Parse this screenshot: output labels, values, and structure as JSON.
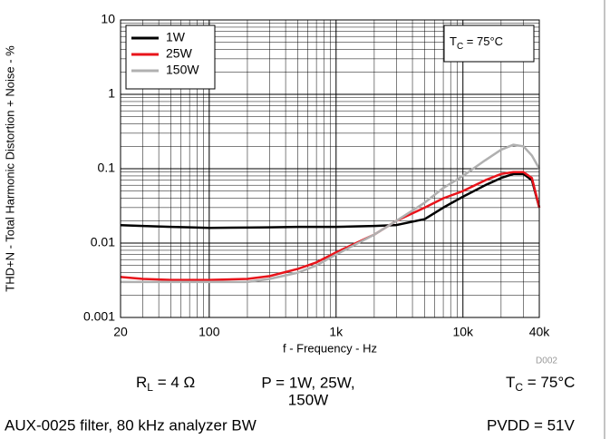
{
  "chart_data": {
    "type": "line",
    "ylabel": "THD+N - Total Harmonic Distortion + Noise - %",
    "xlabel": "f - Frequency - Hz",
    "x": [
      20,
      30,
      50,
      70,
      100,
      200,
      300,
      500,
      700,
      1000,
      2000,
      3000,
      5000,
      7000,
      10000,
      15000,
      20000,
      25000,
      30000,
      35000,
      40000
    ],
    "series": [
      {
        "name": "1W",
        "color": "#000000",
        "values": [
          0.0174,
          0.017,
          0.0165,
          0.0163,
          0.016,
          0.0162,
          0.0163,
          0.0165,
          0.0165,
          0.0165,
          0.017,
          0.0175,
          0.021,
          0.03,
          0.042,
          0.06,
          0.075,
          0.085,
          0.085,
          0.07,
          0.03
        ]
      },
      {
        "name": "25W",
        "color": "#e8141b",
        "values": [
          0.0035,
          0.0033,
          0.0032,
          0.0032,
          0.0032,
          0.0033,
          0.0036,
          0.0045,
          0.0055,
          0.0075,
          0.013,
          0.02,
          0.03,
          0.04,
          0.05,
          0.07,
          0.085,
          0.09,
          0.09,
          0.075,
          0.03
        ]
      },
      {
        "name": "150W",
        "color": "#b0b0b0",
        "values": [
          0.003,
          0.003,
          0.003,
          0.003,
          0.003,
          0.003,
          0.0033,
          0.004,
          0.005,
          0.007,
          0.013,
          0.02,
          0.035,
          0.055,
          0.08,
          0.13,
          0.18,
          0.21,
          0.2,
          0.15,
          0.1
        ]
      }
    ],
    "xlim": [
      20,
      40000
    ],
    "ylim": [
      0.001,
      10
    ],
    "xticks": [
      20,
      100,
      {
        "value": 1000,
        "label": "1k"
      },
      {
        "value": 10000,
        "label": "10k"
      },
      {
        "value": 40000,
        "label": "40k"
      }
    ],
    "yticks": [
      0.001,
      0.01,
      0.1,
      1,
      10
    ],
    "log_x": true,
    "log_y": true,
    "grid": true,
    "legend": "upper left",
    "notes": {
      "tc_box": [
        "T",
        "C",
        " = 75°C"
      ],
      "id": "D002",
      "rl": [
        "R",
        "L",
        " = 4 Ω"
      ],
      "power": [
        "P = 1W, 25W,",
        "150W"
      ],
      "tc": [
        "T",
        "C",
        " = 75°C"
      ],
      "filter": "AUX-0025 filter, 80 kHz analyzer BW",
      "pvdd": "PVDD = 51V"
    }
  }
}
